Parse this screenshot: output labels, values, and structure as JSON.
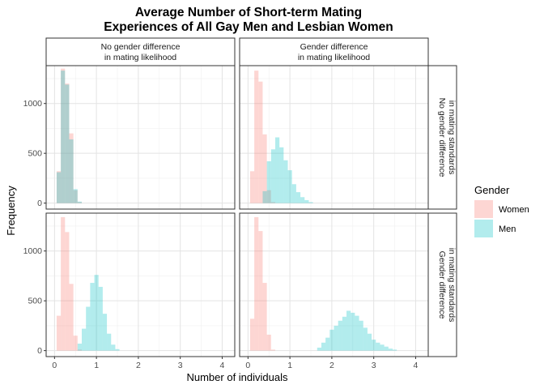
{
  "chart_data": {
    "type": "bar",
    "title_lines": [
      "Average Number of Short-term Mating",
      "Experiences of All Gay Men and Lesbian Women"
    ],
    "xlabel": "Number of individuals",
    "ylabel": "Frequency",
    "xlim": [
      -0.2,
      4.3
    ],
    "ylim": [
      -60,
      1380
    ],
    "xticks": [
      0,
      1,
      2,
      3,
      4
    ],
    "yticks": [
      0,
      500,
      1000
    ],
    "bin_width": 0.1,
    "grid": true,
    "legend": {
      "title": "Gender",
      "position": "right"
    },
    "col_strips": [
      [
        "No gender difference",
        "in mating likelihood"
      ],
      [
        "Gender difference",
        "in mating likelihood"
      ]
    ],
    "row_strips": [
      [
        "No gender difference",
        "in mating standards"
      ],
      [
        "Gender difference",
        "in mating standards"
      ]
    ],
    "series_style": [
      {
        "name": "Women",
        "color": "#F8766D"
      },
      {
        "name": "Men",
        "color": "#00BFC4"
      }
    ],
    "panels": [
      {
        "row": 0,
        "col": 0,
        "series": [
          {
            "name": "Women",
            "bins": [
              [
                0.1,
                320
              ],
              [
                0.2,
                1350
              ],
              [
                0.3,
                1200
              ],
              [
                0.4,
                700
              ],
              [
                0.5,
                130
              ],
              [
                0.6,
                10
              ]
            ]
          },
          {
            "name": "Men",
            "bins": [
              [
                0.1,
                310
              ],
              [
                0.2,
                1330
              ],
              [
                0.3,
                1190
              ],
              [
                0.4,
                640
              ],
              [
                0.5,
                140
              ],
              [
                0.6,
                15
              ]
            ]
          }
        ]
      },
      {
        "row": 0,
        "col": 1,
        "series": [
          {
            "name": "Women",
            "bins": [
              [
                0.1,
                320
              ],
              [
                0.2,
                1330
              ],
              [
                0.3,
                1220
              ],
              [
                0.4,
                690
              ],
              [
                0.5,
                130
              ],
              [
                0.6,
                10
              ]
            ]
          },
          {
            "name": "Men",
            "bins": [
              [
                0.4,
                120
              ],
              [
                0.5,
                420
              ],
              [
                0.6,
                540
              ],
              [
                0.7,
                660
              ],
              [
                0.8,
                560
              ],
              [
                0.9,
                430
              ],
              [
                1.0,
                330
              ],
              [
                1.1,
                190
              ],
              [
                1.2,
                110
              ],
              [
                1.3,
                60
              ],
              [
                1.4,
                30
              ],
              [
                1.5,
                10
              ]
            ]
          }
        ]
      },
      {
        "row": 1,
        "col": 0,
        "series": [
          {
            "name": "Women",
            "bins": [
              [
                0.1,
                350
              ],
              [
                0.2,
                1340
              ],
              [
                0.3,
                1190
              ],
              [
                0.4,
                670
              ],
              [
                0.5,
                150
              ],
              [
                0.6,
                10
              ]
            ]
          },
          {
            "name": "Men",
            "bins": [
              [
                0.6,
                70
              ],
              [
                0.7,
                220
              ],
              [
                0.8,
                440
              ],
              [
                0.9,
                680
              ],
              [
                1.0,
                760
              ],
              [
                1.1,
                640
              ],
              [
                1.2,
                370
              ],
              [
                1.3,
                170
              ],
              [
                1.4,
                60
              ],
              [
                1.5,
                15
              ]
            ]
          }
        ]
      },
      {
        "row": 1,
        "col": 1,
        "series": [
          {
            "name": "Women",
            "bins": [
              [
                0.1,
                320
              ],
              [
                0.2,
                1340
              ],
              [
                0.3,
                1200
              ],
              [
                0.4,
                680
              ],
              [
                0.5,
                160
              ],
              [
                0.6,
                10
              ]
            ]
          },
          {
            "name": "Men",
            "bins": [
              [
                1.7,
                30
              ],
              [
                1.8,
                80
              ],
              [
                1.9,
                130
              ],
              [
                2.0,
                210
              ],
              [
                2.1,
                250
              ],
              [
                2.2,
                300
              ],
              [
                2.3,
                340
              ],
              [
                2.4,
                400
              ],
              [
                2.5,
                380
              ],
              [
                2.6,
                350
              ],
              [
                2.7,
                300
              ],
              [
                2.8,
                230
              ],
              [
                2.9,
                170
              ],
              [
                3.0,
                110
              ],
              [
                3.1,
                80
              ],
              [
                3.2,
                60
              ],
              [
                3.3,
                40
              ],
              [
                3.4,
                20
              ],
              [
                3.5,
                10
              ]
            ]
          }
        ]
      }
    ]
  }
}
